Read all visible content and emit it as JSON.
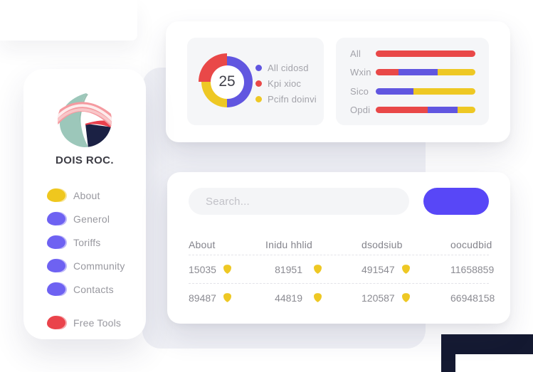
{
  "brand": {
    "name": "DOIS ROC."
  },
  "sidebar": {
    "menu": [
      {
        "label": "About",
        "color": "#efc71e"
      },
      {
        "label": "Generol",
        "color": "#6e62f2"
      },
      {
        "label": "Toriffs",
        "color": "#6e62f2"
      },
      {
        "label": "Community",
        "color": "#6e62f2"
      },
      {
        "label": "Contacts",
        "color": "#6e62f2"
      },
      {
        "label": "Free Tools",
        "color": "#ea434b"
      }
    ]
  },
  "top_card": {
    "legend": [
      {
        "label": "All cidosd",
        "color": "#6156e0"
      },
      {
        "label": "Kpi xioc",
        "color": "#e94848"
      },
      {
        "label": "Pcifn doinvi",
        "color": "#eec824"
      }
    ]
  },
  "search": {
    "placeholder": "Search..."
  },
  "table": {
    "headers": [
      "About",
      "Inidu hhlid",
      "dsodsiub",
      "oocudbid"
    ],
    "rows": [
      {
        "cells": [
          {
            "value": "15035",
            "badge": true
          },
          {
            "value": "81951",
            "badge": true
          },
          {
            "value": "491547",
            "badge": true
          },
          {
            "value": "11658859",
            "badge": false
          }
        ]
      },
      {
        "cells": [
          {
            "value": "89487",
            "badge": true
          },
          {
            "value": "44819",
            "badge": true
          },
          {
            "value": "120587",
            "badge": true
          },
          {
            "value": "66948158",
            "badge": false
          }
        ]
      }
    ]
  },
  "chart_data": [
    {
      "type": "pie",
      "subtype": "donut",
      "center_value": "25",
      "slices": [
        {
          "label": "All cidosd",
          "color": "#6156e0",
          "value": 50
        },
        {
          "label": "Pcifn doinvi",
          "color": "#eec824",
          "value": 25
        },
        {
          "label": "Kpi xioc",
          "color": "#e94848",
          "value": 25
        }
      ],
      "legend_position": "right",
      "emphasized_slice": "Kpi xioc"
    },
    {
      "type": "bar",
      "subtype": "horizontal-stacked",
      "categories": [
        "All",
        "Wxin",
        "Sico",
        "Opdi"
      ],
      "palette": {
        "red": "#e94848",
        "purple": "#6156e0",
        "yellow": "#eec824"
      },
      "rows": [
        [
          {
            "color": "red",
            "pct": 100
          }
        ],
        [
          {
            "color": "red",
            "pct": 23
          },
          {
            "color": "purple",
            "pct": 39
          },
          {
            "color": "yellow",
            "pct": 38
          }
        ],
        [
          {
            "color": "purple",
            "pct": 38
          },
          {
            "color": "yellow",
            "pct": 62
          }
        ],
        [
          {
            "color": "red",
            "pct": 52
          },
          {
            "color": "purple",
            "pct": 30
          },
          {
            "color": "yellow",
            "pct": 18
          }
        ]
      ],
      "xlim": [
        0,
        100
      ],
      "grid": false
    }
  ],
  "colors": {
    "accent_button": "#5847f7",
    "chart_red": "#e94848",
    "chart_purple": "#6156e0",
    "chart_yellow": "#eec824",
    "badge_yellow": "#eec824",
    "navy_block": "#141931",
    "backdrop_gray": "#f0f1f6",
    "logo_teal": "#9cc7ba",
    "logo_navy": "#1b2144",
    "logo_pink": "#f59aa0"
  }
}
